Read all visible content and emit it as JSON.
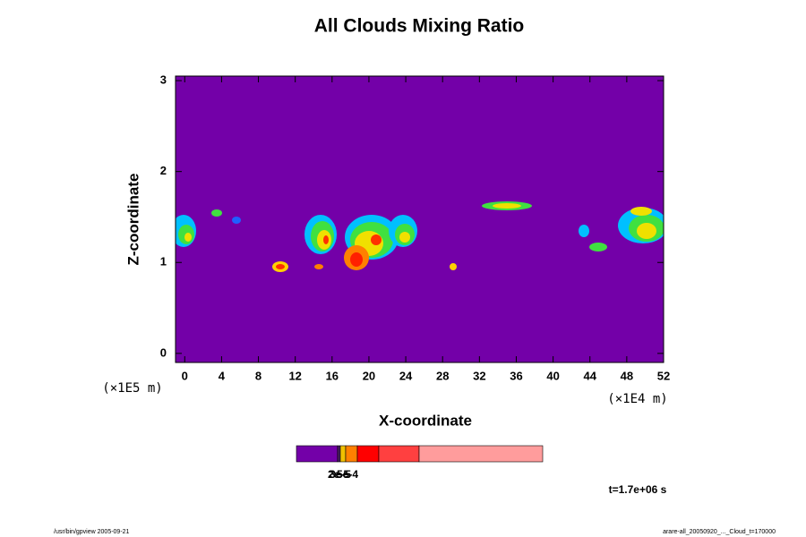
{
  "chart_data": {
    "type": "contour",
    "title": "All Clouds Mixing Ratio",
    "x_label": "X-coordinate",
    "y_label": "Z-coordinate",
    "x_unit": "(×1E4 m)",
    "y_unit": "(×1E5 m)",
    "xlim": [
      -1,
      52
    ],
    "ylim": [
      -0.1,
      3.05
    ],
    "xticks": [
      0,
      4,
      8,
      12,
      16,
      20,
      24,
      28,
      32,
      36,
      40,
      44,
      48,
      52
    ],
    "yticks": [
      0,
      1,
      2,
      3
    ],
    "background_color": "#7300a8",
    "colorbar": {
      "colors": [
        "#7300a8",
        "#4a2060",
        "#f0c000",
        "#ff8000",
        "#ff0000",
        "#ff4040",
        "#ff9c9c"
      ],
      "labels": [
        "2e-5",
        "3e-5",
        "5e-4"
      ]
    },
    "time_label": "t=1.7e+06 s",
    "footer_left": "/usr/bin/gpview 2005-09-21",
    "footer_right": "arare-all_20050920_..._Cloud_t=170000"
  }
}
